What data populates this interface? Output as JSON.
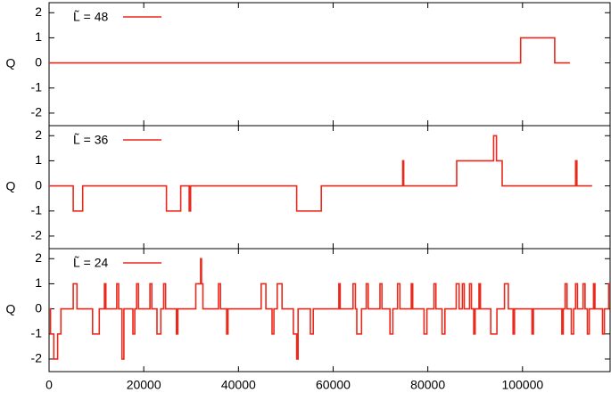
{
  "chart_data": [
    {
      "type": "line",
      "ylabel": "Q",
      "xlim": [
        0,
        118500
      ],
      "ylim": [
        -2.5,
        2.4
      ],
      "yticks": [
        -2,
        -1,
        0,
        1,
        2
      ],
      "series": [
        {
          "name": "L̃ = 48",
          "color": "#e8291c",
          "x": [
            0,
            99600,
            99600,
            106800,
            106800,
            110000
          ],
          "values": [
            0,
            0,
            1,
            1,
            0,
            0
          ]
        }
      ]
    },
    {
      "type": "line",
      "ylabel": "Q",
      "xlim": [
        0,
        118500
      ],
      "ylim": [
        -2.5,
        2.4
      ],
      "yticks": [
        -2,
        -1,
        0,
        1,
        2
      ],
      "series": [
        {
          "name": "L̃ = 36",
          "color": "#e8291c",
          "x": [
            0,
            5100,
            5100,
            7100,
            7100,
            24800,
            24800,
            27800,
            27800,
            29600,
            29600,
            29900,
            29900,
            52300,
            52300,
            57500,
            57500,
            74700,
            74700,
            74900,
            74900,
            86100,
            86100,
            93900,
            93900,
            94500,
            94500,
            95700,
            95700,
            111200,
            111200,
            111500,
            111500,
            114700
          ],
          "values": [
            0,
            0,
            -1,
            -1,
            0,
            0,
            -1,
            -1,
            0,
            0,
            -1,
            -1,
            0,
            0,
            -1,
            -1,
            0,
            0,
            1,
            1,
            0,
            0,
            1,
            1,
            2,
            2,
            1,
            1,
            0,
            0,
            1,
            1,
            0,
            0
          ]
        }
      ]
    },
    {
      "type": "line",
      "ylabel": "Q",
      "xlim": [
        0,
        118500
      ],
      "ylim": [
        -2.5,
        2.4
      ],
      "yticks": [
        -2,
        -1,
        0,
        1,
        2
      ],
      "xticks": [
        0,
        20000,
        40000,
        60000,
        80000,
        100000
      ],
      "series": [
        {
          "name": "L̃ = 24",
          "color": "#e8291c",
          "x": [
            0,
            300,
            300,
            1000,
            1000,
            1800,
            1800,
            2500,
            2500,
            5100,
            5100,
            5900,
            5900,
            9200,
            9200,
            10600,
            10600,
            11700,
            11700,
            12000,
            12000,
            14300,
            14300,
            14700,
            14700,
            15400,
            15400,
            15800,
            15800,
            17700,
            17700,
            18100,
            18100,
            18500,
            18500,
            18900,
            18900,
            21300,
            21300,
            21700,
            21700,
            22800,
            22800,
            23600,
            23600,
            24200,
            24200,
            24600,
            24600,
            26900,
            26900,
            27200,
            27200,
            31000,
            31000,
            32000,
            32000,
            32200,
            32200,
            32500,
            32500,
            35800,
            35800,
            36200,
            36200,
            37500,
            37500,
            37800,
            37800,
            44800,
            44800,
            45800,
            45800,
            47100,
            47100,
            47500,
            47500,
            48200,
            48200,
            49200,
            49200,
            51600,
            51600,
            52300,
            52300,
            52600,
            52600,
            55200,
            55200,
            55800,
            55800,
            61200,
            61200,
            61500,
            61500,
            64200,
            64200,
            64700,
            64700,
            65000,
            65000,
            66000,
            66000,
            67000,
            67000,
            67400,
            67400,
            69900,
            69900,
            70300,
            70300,
            72000,
            72000,
            72600,
            72600,
            73600,
            73600,
            74100,
            74100,
            76500,
            76500,
            76800,
            76800,
            79200,
            79200,
            79800,
            79800,
            81300,
            81300,
            81700,
            81700,
            83000,
            83000,
            83600,
            83600,
            86000,
            86000,
            86600,
            86600,
            87300,
            87300,
            87700,
            87700,
            88800,
            88800,
            89200,
            89200,
            89700,
            89700,
            90000,
            90000,
            90800,
            90800,
            91100,
            91100,
            93300,
            93300,
            94600,
            94600,
            96200,
            96200,
            97000,
            97000,
            98000,
            98000,
            98300,
            98300,
            102000,
            102000,
            102300,
            102300,
            108300,
            108300,
            108600,
            108600,
            109000,
            109000,
            109400,
            109400,
            110300,
            110300,
            110800,
            110800,
            111200,
            111200,
            111600,
            111600,
            112800,
            112800,
            113200,
            113200,
            113700,
            113700,
            114100,
            114100,
            115000,
            115000,
            115300,
            115300,
            116900,
            116900,
            117300,
            117300,
            118200,
            118200,
            118500
          ],
          "values": [
            0,
            0,
            -1,
            -1,
            -2,
            -2,
            -1,
            -1,
            0,
            0,
            1,
            1,
            0,
            0,
            -1,
            -1,
            0,
            0,
            1,
            1,
            0,
            0,
            1,
            1,
            0,
            0,
            -2,
            -2,
            0,
            0,
            -1,
            -1,
            0,
            0,
            1,
            1,
            0,
            0,
            1,
            1,
            0,
            0,
            -1,
            -1,
            0,
            0,
            1,
            1,
            0,
            0,
            -1,
            -1,
            0,
            0,
            1,
            1,
            2,
            2,
            1,
            1,
            0,
            0,
            1,
            1,
            0,
            0,
            -1,
            -1,
            0,
            0,
            1,
            1,
            0,
            0,
            -1,
            -1,
            0,
            0,
            1,
            1,
            0,
            0,
            -1,
            -1,
            -2,
            -2,
            0,
            0,
            -1,
            -1,
            0,
            0,
            1,
            1,
            0,
            0,
            1,
            1,
            0,
            0,
            -1,
            -1,
            0,
            0,
            1,
            1,
            0,
            0,
            1,
            1,
            0,
            0,
            -1,
            -1,
            0,
            0,
            1,
            1,
            0,
            0,
            1,
            1,
            0,
            0,
            -1,
            -1,
            0,
            0,
            1,
            1,
            0,
            0,
            -1,
            -1,
            0,
            0,
            1,
            1,
            0,
            0,
            1,
            1,
            0,
            0,
            1,
            1,
            0,
            0,
            -1,
            -1,
            0,
            0,
            1,
            1,
            0,
            0,
            -1,
            -1,
            0,
            0,
            1,
            1,
            0,
            0,
            -1,
            -1,
            0,
            0,
            -1,
            -1,
            0,
            0,
            -1,
            -1,
            0,
            0,
            1,
            1,
            0,
            0,
            -1,
            -1,
            0,
            0,
            1,
            1,
            0,
            0,
            1,
            1,
            0,
            0,
            -1,
            -1,
            0,
            0,
            1,
            1,
            0,
            0,
            -1,
            -1,
            0,
            0,
            1,
            1
          ]
        }
      ]
    }
  ]
}
